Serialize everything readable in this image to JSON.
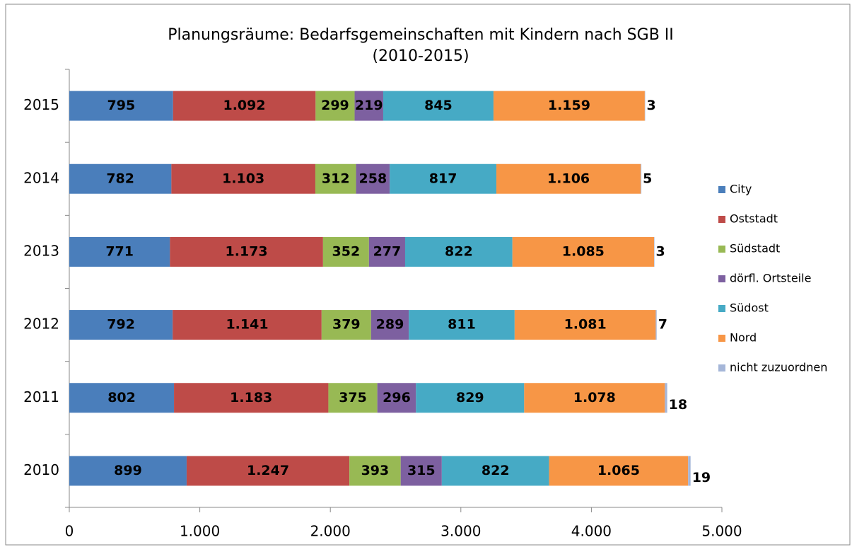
{
  "chart_data": {
    "type": "stacked_barh",
    "title": [
      "Planungsräume: Bedarfsgemeinschaften mit Kindern nach SGB II",
      "(2010-2015)"
    ],
    "categories": [
      "2015",
      "2014",
      "2013",
      "2012",
      "2011",
      "2010"
    ],
    "series": [
      {
        "name": "City",
        "color": "#4a7ebb",
        "values": [
          795,
          782,
          771,
          792,
          802,
          899
        ],
        "value_labels": [
          "795",
          "782",
          "771",
          "792",
          "802",
          "899"
        ]
      },
      {
        "name": "Oststadt",
        "color": "#be4b48",
        "values": [
          1092,
          1103,
          1173,
          1141,
          1183,
          1247
        ],
        "value_labels": [
          "1.092",
          "1.103",
          "1.173",
          "1.141",
          "1.183",
          "1.247"
        ]
      },
      {
        "name": "Südstadt",
        "color": "#98b954",
        "values": [
          299,
          312,
          352,
          379,
          375,
          393
        ],
        "value_labels": [
          "299",
          "312",
          "352",
          "379",
          "375",
          "393"
        ]
      },
      {
        "name": "dörfl. Ortsteile",
        "color": "#7d60a0",
        "values": [
          219,
          258,
          277,
          289,
          296,
          315
        ],
        "value_labels": [
          "219",
          "258",
          "277",
          "289",
          "296",
          "315"
        ]
      },
      {
        "name": "Südost",
        "color": "#46aac5",
        "values": [
          845,
          817,
          822,
          811,
          829,
          822
        ],
        "value_labels": [
          "845",
          "817",
          "822",
          "811",
          "829",
          "822"
        ]
      },
      {
        "name": "Nord",
        "color": "#f79646",
        "values": [
          1159,
          1106,
          1085,
          1081,
          1078,
          1065
        ],
        "value_labels": [
          "1.159",
          "1.106",
          "1.085",
          "1.081",
          "1.078",
          "1.065"
        ]
      },
      {
        "name": "nicht zuzuordnen",
        "color": "#a5b6d8",
        "values": [
          3,
          5,
          3,
          7,
          18,
          19
        ],
        "value_labels": [
          "3",
          "5",
          "3",
          "7",
          "18",
          "19"
        ]
      }
    ],
    "xlim": [
      0,
      5000
    ],
    "xticks": [
      0,
      {
        "value": 1000,
        "label": "1.000"
      },
      {
        "value": 2000,
        "label": "2.000"
      },
      {
        "value": 3000,
        "label": "3.000"
      },
      {
        "value": 4000,
        "label": "4.000"
      },
      {
        "value": 5000,
        "label": "5.000"
      }
    ],
    "legend": "right"
  }
}
